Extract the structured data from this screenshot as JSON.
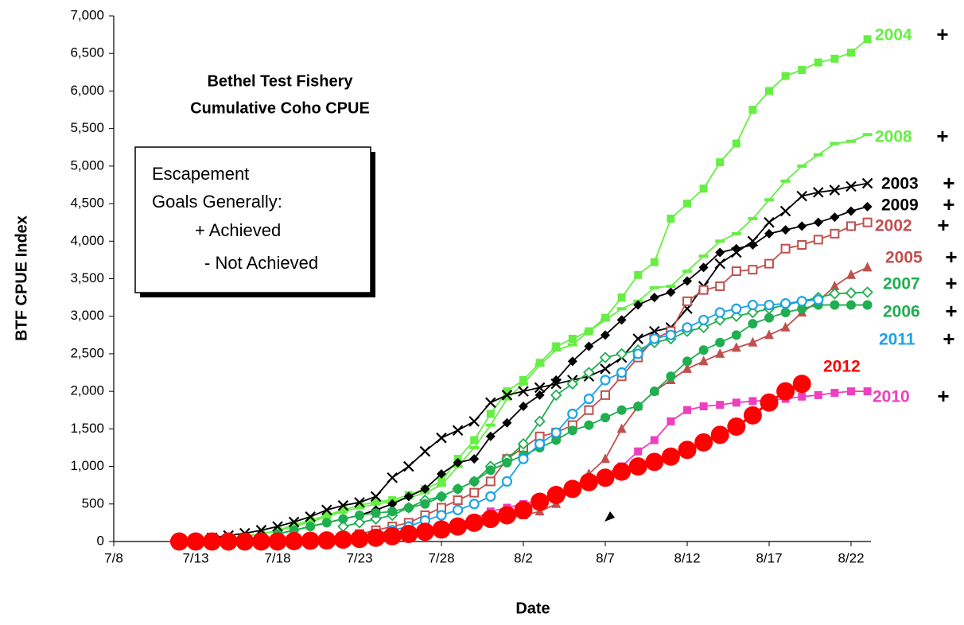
{
  "chart_data": {
    "type": "line",
    "title": [
      "Bethel Test Fishery",
      "Cumulative Coho CPUE"
    ],
    "x_label": "Date",
    "y_label": "BTF CPUE Index",
    "legend_box": [
      "Escapement",
      "Goals Generally:",
      "+ Achieved",
      "- Not Achieved"
    ],
    "categories": [
      "7/8",
      null,
      null,
      null,
      null,
      "7/13",
      null,
      null,
      null,
      null,
      "7/18",
      null,
      null,
      null,
      null,
      "7/23",
      null,
      null,
      null,
      null,
      "7/28",
      null,
      null,
      null,
      null,
      "8/2",
      null,
      null,
      null,
      null,
      "8/7",
      null,
      null,
      null,
      null,
      "8/12",
      null,
      null,
      null,
      null,
      "8/17",
      null,
      null,
      null,
      null,
      "8/22",
      null
    ],
    "ylim": [
      0,
      7000
    ],
    "yticks": [
      0,
      500,
      {
        "value": 1000,
        "label": "1,000"
      },
      {
        "value": 1500,
        "label": "1,500"
      },
      {
        "value": 2000,
        "label": "2,000"
      },
      {
        "value": 2500,
        "label": "2,500"
      },
      {
        "value": 3000,
        "label": "3,000"
      },
      {
        "value": 3500,
        "label": "3,500"
      },
      {
        "value": 4000,
        "label": "4,000"
      },
      {
        "value": 4500,
        "label": "4,500"
      },
      {
        "value": 5000,
        "label": "5,000"
      },
      {
        "value": 5500,
        "label": "5,500"
      },
      {
        "value": 6000,
        "label": "6,000"
      },
      {
        "value": 6500,
        "label": "6,500"
      },
      {
        "value": 7000,
        "label": "7,000"
      }
    ],
    "series": [
      {
        "name": "2004",
        "goal": "+",
        "color": "#66ee44",
        "marker": "square",
        "values": [
          null,
          null,
          null,
          null,
          null,
          null,
          20,
          40,
          70,
          100,
          150,
          220,
          280,
          350,
          420,
          480,
          530,
          550,
          620,
          700,
          800,
          1100,
          1350,
          1700,
          2000,
          2150,
          2380,
          2600,
          2700,
          2800,
          2980,
          3250,
          3550,
          3720,
          4300,
          4500,
          4700,
          5050,
          5300,
          5750,
          6000,
          6200,
          6280,
          6380,
          6430,
          6510,
          6690
        ]
      },
      {
        "name": "2008",
        "goal": "+",
        "color": "#66ee44",
        "marker": "dash",
        "values": [
          null,
          null,
          null,
          null,
          null,
          null,
          20,
          40,
          70,
          100,
          140,
          200,
          260,
          330,
          400,
          450,
          500,
          530,
          580,
          650,
          750,
          1000,
          1250,
          1550,
          1900,
          2100,
          2350,
          2550,
          2620,
          2800,
          2950,
          3100,
          3200,
          3380,
          3400,
          3600,
          3800,
          4000,
          4100,
          4300,
          4550,
          4800,
          5000,
          5150,
          5300,
          5330,
          5420
        ]
      },
      {
        "name": "2003",
        "goal": "+",
        "color": "#000000",
        "marker": "x",
        "values": [
          null,
          null,
          null,
          null,
          null,
          null,
          50,
          80,
          110,
          150,
          200,
          260,
          330,
          420,
          480,
          520,
          600,
          850,
          1000,
          1200,
          1380,
          1480,
          1600,
          1850,
          1950,
          2000,
          2050,
          2100,
          2150,
          2200,
          2300,
          2450,
          2700,
          2800,
          2850,
          3100,
          3400,
          3700,
          3850,
          4000,
          4250,
          4400,
          4600,
          4650,
          4680,
          4730,
          4770
        ]
      },
      {
        "name": "2009",
        "goal": "+",
        "color": "#000000",
        "marker": "diamond",
        "values": [
          null,
          null,
          null,
          null,
          null,
          null,
          null,
          null,
          null,
          null,
          100,
          150,
          200,
          250,
          300,
          350,
          420,
          500,
          600,
          700,
          900,
          1050,
          1100,
          1400,
          1580,
          1800,
          1950,
          2150,
          2400,
          2600,
          2750,
          2950,
          3150,
          3250,
          3320,
          3470,
          3650,
          3850,
          3900,
          3950,
          4100,
          4150,
          4200,
          4250,
          4320,
          4400,
          4460
        ]
      },
      {
        "name": "2002",
        "goal": "+",
        "color": "#c0504d",
        "marker": "open-square",
        "values": [
          null,
          null,
          null,
          null,
          null,
          null,
          null,
          null,
          null,
          null,
          null,
          null,
          null,
          null,
          null,
          100,
          150,
          200,
          250,
          350,
          450,
          550,
          650,
          800,
          1100,
          1250,
          1400,
          1450,
          1550,
          1750,
          1950,
          2200,
          2450,
          2700,
          2800,
          3200,
          3350,
          3400,
          3600,
          3620,
          3700,
          3900,
          3950,
          4020,
          4100,
          4200,
          4250
        ]
      },
      {
        "name": "2005",
        "goal": "+",
        "color": "#c0504d",
        "marker": "triangle",
        "values": [
          null,
          null,
          null,
          null,
          null,
          null,
          null,
          null,
          null,
          null,
          null,
          null,
          null,
          null,
          null,
          null,
          null,
          null,
          null,
          null,
          100,
          150,
          200,
          250,
          300,
          350,
          400,
          500,
          700,
          900,
          1100,
          1500,
          1800,
          2000,
          2150,
          2300,
          2400,
          2500,
          2580,
          2650,
          2750,
          2850,
          3050,
          3200,
          3400,
          3550,
          3650
        ]
      },
      {
        "name": "2007",
        "goal": "+",
        "color": "#1fae50",
        "marker": "open-diamond",
        "values": [
          null,
          null,
          null,
          null,
          null,
          null,
          null,
          null,
          null,
          null,
          null,
          null,
          null,
          null,
          200,
          250,
          300,
          350,
          450,
          550,
          600,
          700,
          800,
          1000,
          1100,
          1300,
          1600,
          1950,
          2100,
          2250,
          2450,
          2500,
          2550,
          2650,
          2700,
          2800,
          2850,
          2950,
          3000,
          3050,
          3100,
          3150,
          3200,
          3250,
          3300,
          3310,
          3320
        ]
      },
      {
        "name": "2006",
        "goal": "+",
        "color": "#1fae50",
        "marker": "circle",
        "values": [
          null,
          null,
          null,
          null,
          null,
          null,
          null,
          null,
          null,
          null,
          100,
          150,
          200,
          250,
          300,
          350,
          380,
          400,
          450,
          500,
          600,
          700,
          800,
          950,
          1050,
          1150,
          1250,
          1350,
          1480,
          1550,
          1650,
          1750,
          1800,
          2000,
          2200,
          2400,
          2550,
          2650,
          2750,
          2900,
          2980,
          3050,
          3100,
          3150,
          3150,
          3150,
          3150
        ]
      },
      {
        "name": "2011",
        "goal": "+",
        "color": "#1aa3e8",
        "marker": "open-circle",
        "values": [
          null,
          null,
          null,
          null,
          null,
          null,
          null,
          null,
          null,
          null,
          null,
          null,
          null,
          null,
          50,
          80,
          100,
          150,
          200,
          280,
          350,
          420,
          500,
          600,
          800,
          1100,
          1300,
          1450,
          1700,
          1900,
          2150,
          2250,
          2500,
          2700,
          2750,
          2850,
          2950,
          3050,
          3100,
          3150,
          3150,
          3170,
          3200,
          3220,
          null,
          null,
          null
        ]
      },
      {
        "name": "2010",
        "goal": "+",
        "color": "#ee3fbf",
        "marker": "square",
        "values": [
          null,
          null,
          null,
          null,
          null,
          null,
          null,
          null,
          null,
          null,
          null,
          null,
          null,
          null,
          null,
          null,
          null,
          null,
          null,
          null,
          200,
          250,
          300,
          400,
          450,
          500,
          550,
          600,
          700,
          800,
          900,
          1000,
          1200,
          1350,
          1600,
          1750,
          1800,
          1820,
          1850,
          1870,
          1880,
          1900,
          1930,
          1950,
          1980,
          2000,
          2000
        ]
      },
      {
        "name": "2012",
        "color": "#ff0000",
        "marker": "big-circle",
        "values": [
          null,
          null,
          null,
          null,
          0,
          0,
          0,
          0,
          0,
          0,
          0,
          5,
          10,
          15,
          25,
          35,
          50,
          70,
          100,
          130,
          160,
          200,
          250,
          300,
          350,
          420,
          530,
          620,
          700,
          790,
          850,
          930,
          1000,
          1060,
          1130,
          1220,
          1320,
          1420,
          1530,
          1680,
          1850,
          2000,
          2100,
          null,
          null,
          null,
          null
        ]
      }
    ]
  }
}
